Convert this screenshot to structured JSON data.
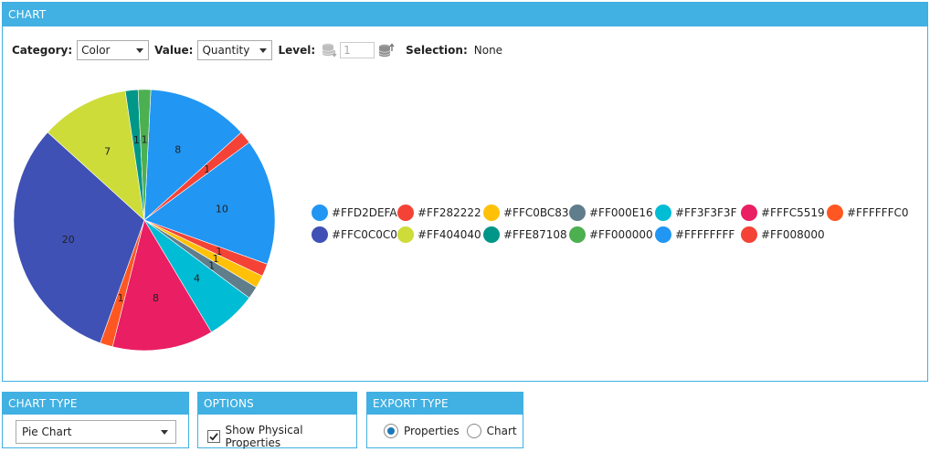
{
  "chart_panel": {
    "title": "CHART"
  },
  "toolbar": {
    "category_label": "Category:",
    "category_value": "Color",
    "value_label": "Value:",
    "value_value": "Quantity",
    "level_label": "Level:",
    "level_value": "1",
    "selection_label": "Selection:",
    "selection_value": "None"
  },
  "chart_data": {
    "type": "pie",
    "slices": [
      {
        "label": "#FFD2DEFA",
        "value": 8,
        "color": "#2196f3"
      },
      {
        "label": "#FF282222",
        "value": 1,
        "color": "#f44336"
      },
      {
        "label": "#FFD2DEFA",
        "value": 10,
        "color": "#2196f3"
      },
      {
        "label": "#FF282222",
        "value": 1,
        "color": "#f44336"
      },
      {
        "label": "#FFC0BC83",
        "value": 1,
        "color": "#ffc107"
      },
      {
        "label": "#FF000E16",
        "value": 1,
        "color": "#607d8b"
      },
      {
        "label": "#FF3F3F3F",
        "value": 4,
        "color": "#00bcd4"
      },
      {
        "label": "#FFFC5519",
        "value": 8,
        "color": "#e91e63"
      },
      {
        "label": "#FFFFFFC0",
        "value": 1,
        "color": "#ff5722"
      },
      {
        "label": "#FFC0C0C0",
        "value": 20,
        "color": "#3f51b5"
      },
      {
        "label": "#FF404040",
        "value": 7,
        "color": "#cddc39"
      },
      {
        "label": "#FFE87108",
        "value": 1,
        "color": "#009688"
      },
      {
        "label": "#FF000000",
        "value": 1,
        "color": "#4caf50"
      }
    ],
    "legend": [
      {
        "label": "#FFD2DEFA",
        "color": "#2196f3"
      },
      {
        "label": "#FF282222",
        "color": "#f44336"
      },
      {
        "label": "#FFC0BC83",
        "color": "#ffc107"
      },
      {
        "label": "#FF000E16",
        "color": "#607d8b"
      },
      {
        "label": "#FF3F3F3F",
        "color": "#00bcd4"
      },
      {
        "label": "#FFFC5519",
        "color": "#e91e63"
      },
      {
        "label": "#FFFFFFC0",
        "color": "#ff5722"
      },
      {
        "label": "#FFC0C0C0",
        "color": "#3f51b5"
      },
      {
        "label": "#FF404040",
        "color": "#cddc39"
      },
      {
        "label": "#FFE87108",
        "color": "#009688"
      },
      {
        "label": "#FF000000",
        "color": "#4caf50"
      },
      {
        "label": "#FFFFFFFF",
        "color": "#2196f3"
      },
      {
        "label": "#FF008000",
        "color": "#f44336"
      }
    ],
    "legend_placement": "right"
  },
  "chart_type_panel": {
    "title": "CHART TYPE",
    "selected": "Pie Chart"
  },
  "options_panel": {
    "title": "OPTIONS",
    "show_physical_label": "Show Physical Properties",
    "show_physical_checked": true
  },
  "export_panel": {
    "title": "EXPORT TYPE",
    "option_properties": "Properties",
    "option_chart": "Chart",
    "selected": "Properties"
  },
  "icons": {
    "level_down": "database-down-icon",
    "level_up": "database-up-icon",
    "check": "check-icon"
  }
}
